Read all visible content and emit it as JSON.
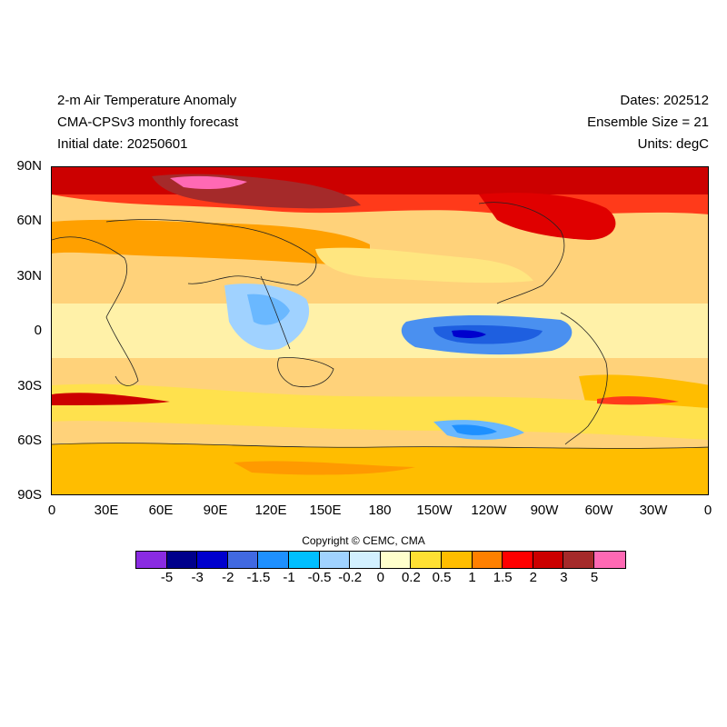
{
  "header": {
    "title": "2-m Air Temperature Anomaly",
    "model": "CMA-CPSv3 monthly forecast",
    "initial_date": "Initial date: 20250601",
    "dates": "Dates: 202512",
    "ensemble": "Ensemble Size = 21",
    "units": "Units: degC"
  },
  "map": {
    "lat_labels": [
      "90N",
      "60N",
      "30N",
      "0",
      "30S",
      "60S",
      "90S"
    ],
    "lon_labels": [
      "0",
      "30E",
      "60E",
      "90E",
      "120E",
      "150E",
      "180",
      "150W",
      "120W",
      "90W",
      "60W",
      "30W",
      "0"
    ],
    "projection": "cylindrical equidistant",
    "region_summary": [
      {
        "region": "Arctic / Northern Eurasia",
        "level": "3 to 5"
      },
      {
        "region": "Northern Canada",
        "level": "2 to 3"
      },
      {
        "region": "Eastern tropical Pacific",
        "level": "-1 to -3"
      },
      {
        "region": "Southern Ocean belt",
        "level": "-0.5 to 1"
      },
      {
        "region": "Antarctica",
        "level": "0.5 to 1"
      }
    ]
  },
  "copyright": "Copyright © CEMC, CMA",
  "colorbar": {
    "colors": [
      "#8a2be2",
      "#00008b",
      "#0000cd",
      "#4169e1",
      "#1e90ff",
      "#00bfff",
      "#a0d2ff",
      "#d2f0ff",
      "#ffffcc",
      "#ffe033",
      "#ffbd00",
      "#ff8000",
      "#ff0000",
      "#cc0000",
      "#a52a2a",
      "#ff69b4"
    ],
    "labels": [
      "-5",
      "-3",
      "-2",
      "-1.5",
      "-1",
      "-0.5",
      "-0.2",
      "0",
      "0.2",
      "0.5",
      "1",
      "1.5",
      "2",
      "3",
      "5"
    ]
  }
}
